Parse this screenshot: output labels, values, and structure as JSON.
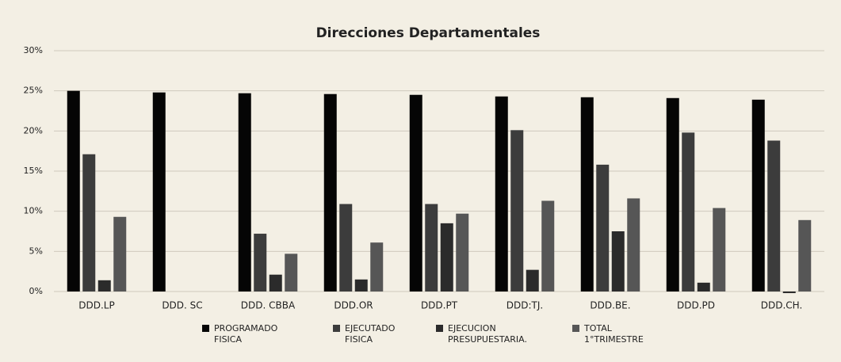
{
  "chart_data": {
    "type": "bar",
    "title": "Direcciones Departamentales",
    "categories": [
      "DDD.LP",
      "DDD. SC",
      "DDD. CBBA",
      "DDD.OR",
      "DDD.PT",
      "DDD:TJ.",
      "DDD.BE.",
      "DDD.PD",
      "DDD.CH."
    ],
    "series": [
      {
        "name": "PROGRAMADO FISICA",
        "color": "#050505",
        "values": [
          25.0,
          24.8,
          24.7,
          24.6,
          24.5,
          24.3,
          24.2,
          24.1,
          23.9
        ]
      },
      {
        "name": "EJECUTADO FISICA",
        "color": "#3c3c3c",
        "values": [
          17.1,
          0,
          7.2,
          10.9,
          10.9,
          20.1,
          15.8,
          19.8,
          18.8
        ]
      },
      {
        "name": "EJECUCION PRESUPUESTARIA.",
        "color": "#2b2b2b",
        "values": [
          1.4,
          0,
          2.1,
          1.5,
          8.5,
          2.7,
          7.5,
          1.1,
          -0.2
        ]
      },
      {
        "name": "TOTAL 1°TRIMESTRE",
        "color": "#565656",
        "values": [
          9.3,
          0,
          4.7,
          6.1,
          9.7,
          11.3,
          11.6,
          10.4,
          8.9
        ]
      }
    ],
    "ylim": [
      0,
      30
    ],
    "yticks": [
      {
        "value": 0,
        "label": "0%"
      },
      {
        "value": 5,
        "label": "5%"
      },
      {
        "value": 10,
        "label": "10%"
      },
      {
        "value": 15,
        "label": "15%"
      },
      {
        "value": 20,
        "label": "20%"
      },
      {
        "value": 25,
        "label": "25%"
      },
      {
        "value": 30,
        "label": "30%"
      }
    ],
    "grid": true,
    "legend": "bottom"
  }
}
